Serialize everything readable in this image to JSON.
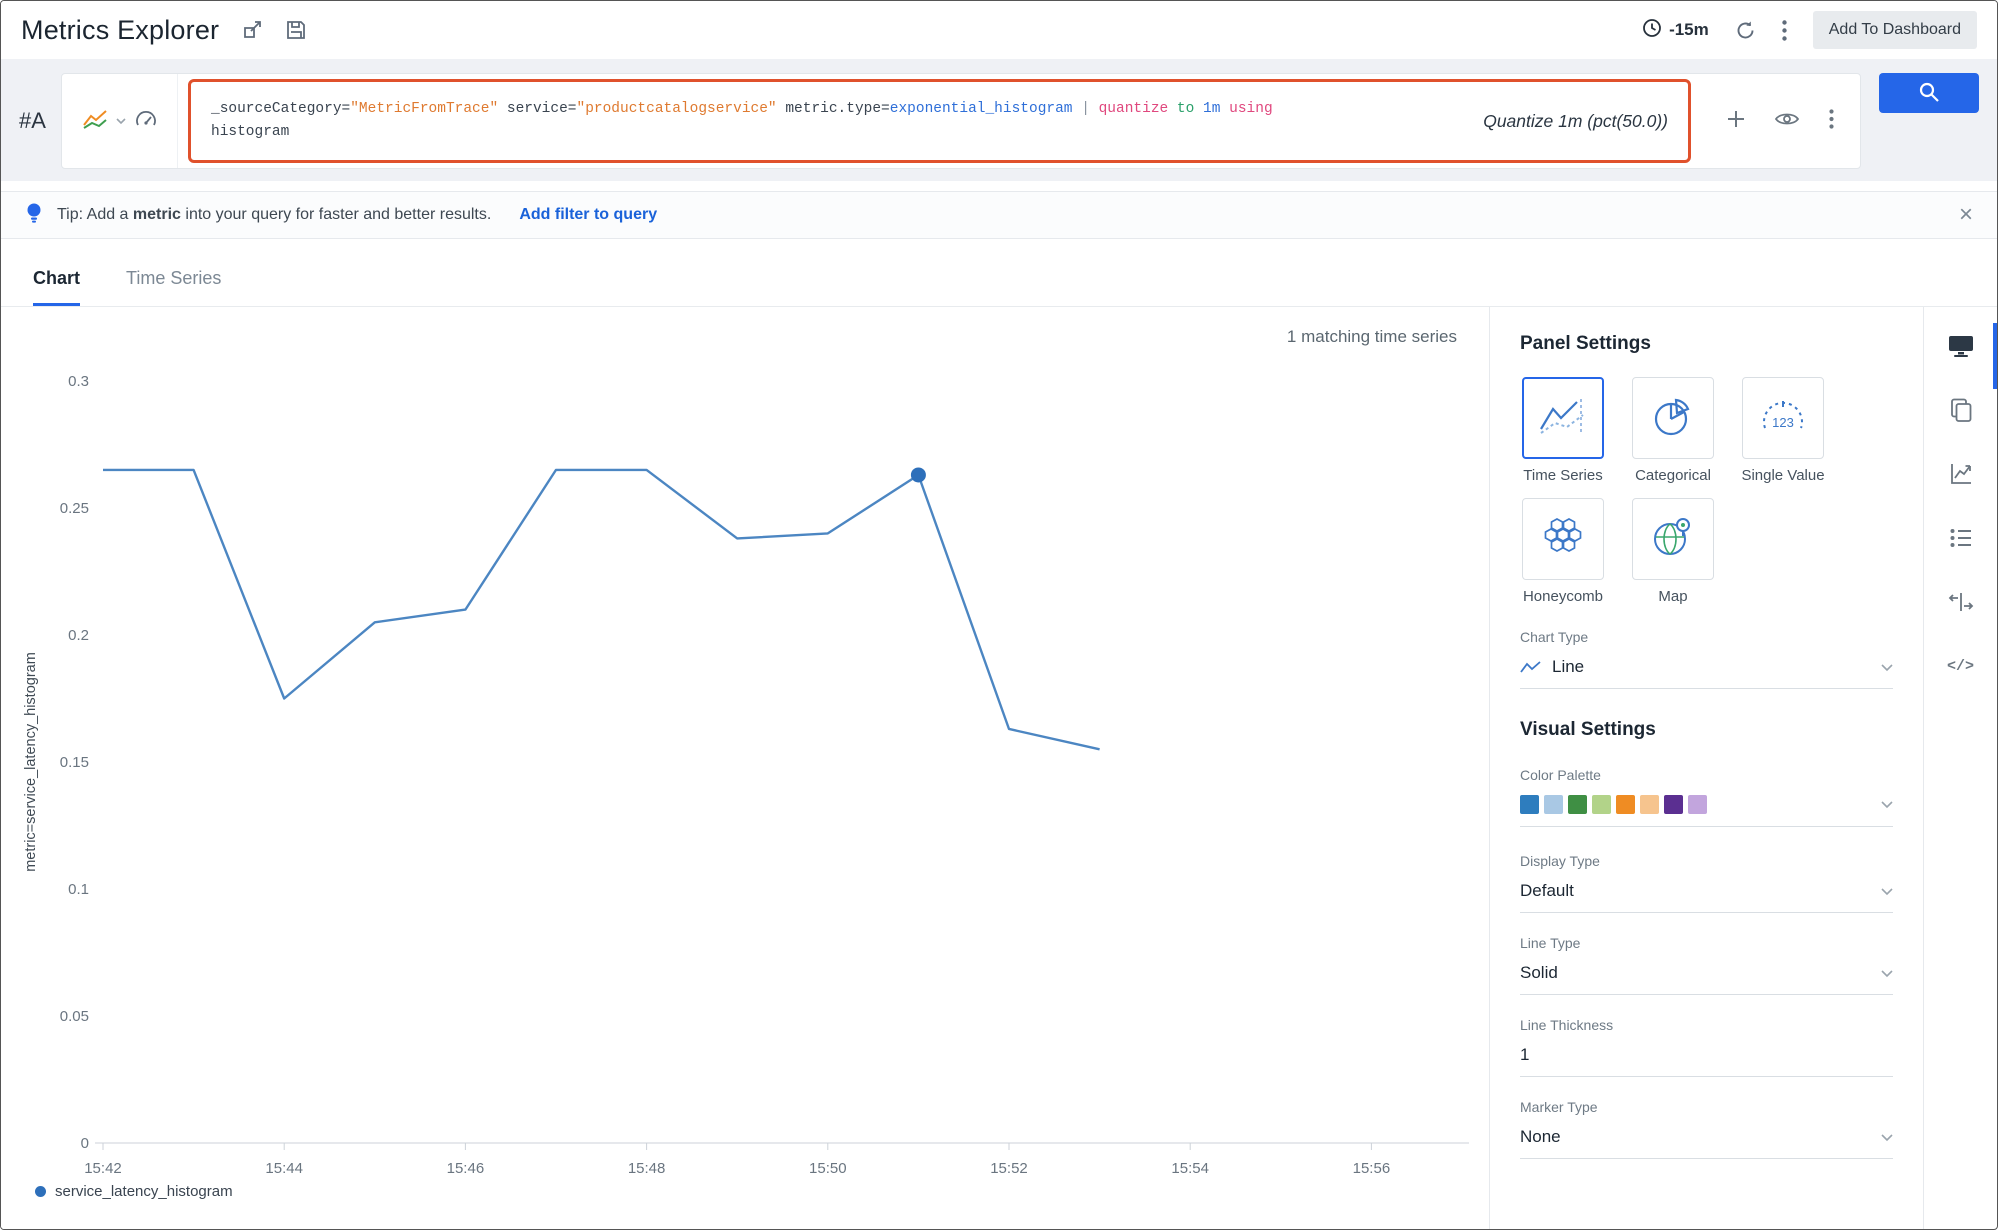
{
  "header": {
    "title": "Metrics Explorer",
    "time_range": "-15m",
    "add_to_dashboard": "Add To Dashboard"
  },
  "query": {
    "row_label": "#A",
    "segments": [
      {
        "t": "_sourceCategory=",
        "c": "plain"
      },
      {
        "t": "\"MetricFromTrace\"",
        "c": "string"
      },
      {
        "t": " service=",
        "c": "plain"
      },
      {
        "t": "\"productcatalogservice\"",
        "c": "string"
      },
      {
        "t": " metric.type=",
        "c": "plain"
      },
      {
        "t": "exponential_histogram",
        "c": "value"
      },
      {
        "t": " | ",
        "c": "pipe"
      },
      {
        "t": "quantize",
        "c": "kw"
      },
      {
        "t": " to ",
        "c": "kw2"
      },
      {
        "t": "1m",
        "c": "value"
      },
      {
        "t": " using ",
        "c": "kw"
      },
      {
        "t": "histogram",
        "c": "plain"
      }
    ],
    "quantize_label": "Quantize 1m (pct(50.0))"
  },
  "tip": {
    "prefix": "Tip: Add a ",
    "bold": "metric",
    "suffix": " into your query for faster and better results.",
    "link": "Add filter to query",
    "close": "×"
  },
  "tabs": {
    "chart": "Chart",
    "time_series": "Time Series"
  },
  "chart": {
    "matching": "1 matching time series",
    "y_axis_label": "metric=service_latency_histogram",
    "legend": "service_latency_histogram"
  },
  "chart_data": {
    "type": "line",
    "title": "",
    "x": [
      "15:42",
      "15:43",
      "15:44",
      "15:45",
      "15:46",
      "15:47",
      "15:48",
      "15:49",
      "15:50",
      "15:51",
      "15:52",
      "15:53"
    ],
    "series": [
      {
        "name": "service_latency_histogram",
        "minutes": [
          0,
          1,
          2,
          3,
          4,
          5,
          6,
          7,
          8,
          9,
          10,
          11
        ],
        "values": [
          0.265,
          0.265,
          0.175,
          0.205,
          0.21,
          0.265,
          0.265,
          0.238,
          0.24,
          0.263,
          0.163,
          0.155
        ]
      }
    ],
    "highlight_index": 9,
    "x_tick_labels": [
      "15:42",
      "15:44",
      "15:46",
      "15:48",
      "15:50",
      "15:52",
      "15:54",
      "15:56"
    ],
    "x_tick_minutes": [
      0,
      2,
      4,
      6,
      8,
      10,
      12,
      14
    ],
    "y_ticks": [
      0,
      0.05,
      0.1,
      0.15,
      0.2,
      0.25,
      0.3
    ],
    "ylim": [
      0,
      0.3
    ],
    "grid": false,
    "legend_position": "bottom-left"
  },
  "panel": {
    "title": "Panel Settings",
    "chart_types": [
      "Time Series",
      "Categorical",
      "Single Value",
      "Honeycomb",
      "Map"
    ],
    "single_value_icon_text": "123",
    "chart_type_label": "Chart Type",
    "chart_type_value": "Line",
    "visual_title": "Visual Settings",
    "color_palette_label": "Color Palette",
    "palette": [
      "#2e7dbe",
      "#a9c8e4",
      "#3f8f44",
      "#b2d389",
      "#ef8c23",
      "#f6c48e",
      "#5b2f91",
      "#c2a5dd"
    ],
    "display_type_label": "Display Type",
    "display_type_value": "Default",
    "line_type_label": "Line Type",
    "line_type_value": "Solid",
    "line_thickness_label": "Line Thickness",
    "line_thickness_value": "1",
    "marker_type_label": "Marker Type",
    "marker_type_value": "None"
  },
  "colors": {
    "accent": "#2566e8",
    "line": "#4c86c2",
    "marker": "#2d6fba",
    "annotation": "#e0512c"
  }
}
